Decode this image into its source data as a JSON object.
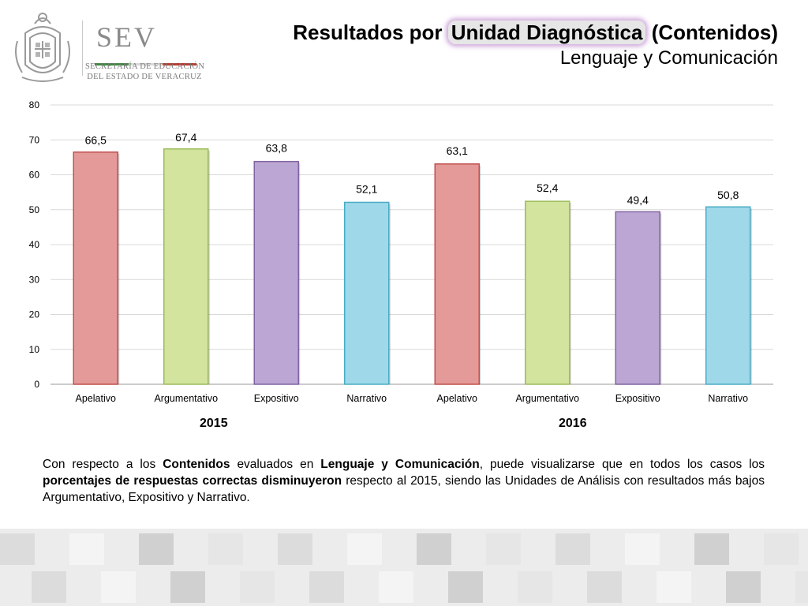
{
  "header": {
    "logo": {
      "name": "SEV",
      "subtitle_line1": "SECRETARÍA DE EDUCACIÓN",
      "subtitle_line2": "DEL ESTADO DE VERACRUZ",
      "stripe_colors": [
        "#3a8c3a",
        "#d9d9d9",
        "#c0392b"
      ]
    },
    "title_prefix": "Resultados por ",
    "title_highlight": "Unidad Diagnóstica",
    "title_suffix": " (Contenidos)",
    "subtitle": "Lenguaje y Comunicación"
  },
  "chart_data": {
    "type": "bar",
    "categories": [
      "Apelativo",
      "Argumentativo",
      "Expositivo",
      "Narrativo",
      "Apelativo",
      "Argumentativo",
      "Expositivo",
      "Narrativo"
    ],
    "values": [
      66.5,
      67.4,
      63.8,
      52.1,
      63.1,
      52.4,
      49.4,
      50.8
    ],
    "value_labels": [
      "66,5",
      "67,4",
      "63,8",
      "52,1",
      "63,1",
      "52,4",
      "49,4",
      "50,8"
    ],
    "groups": [
      "2015",
      "2016"
    ],
    "ylim": [
      0,
      80
    ],
    "yticks": [
      0,
      10,
      20,
      30,
      40,
      50,
      60,
      70,
      80
    ],
    "grid": true,
    "bar_colors": [
      "#e39a98",
      "#d3e49e",
      "#bca6d3",
      "#9fd9e9",
      "#e39a98",
      "#d3e49e",
      "#bca6d3",
      "#9fd9e9"
    ],
    "bar_border_colors": [
      "#c0504d",
      "#9bbb59",
      "#8064a2",
      "#4bacc6",
      "#c0504d",
      "#9bbb59",
      "#8064a2",
      "#4bacc6"
    ]
  },
  "paragraph": {
    "t1": "Con respecto a los ",
    "b1": "Contenidos",
    "t2": " evaluados en ",
    "b2": "Lenguaje y Comunicación",
    "t3": ", puede visualizarse que en todos los casos los ",
    "b3": "porcentajes de respuestas correctas disminuyeron",
    "t4": " respecto al 2015, siendo las Unidades de Análisis con resultados más bajos Argumentativo, Expositivo y Narrativo."
  }
}
